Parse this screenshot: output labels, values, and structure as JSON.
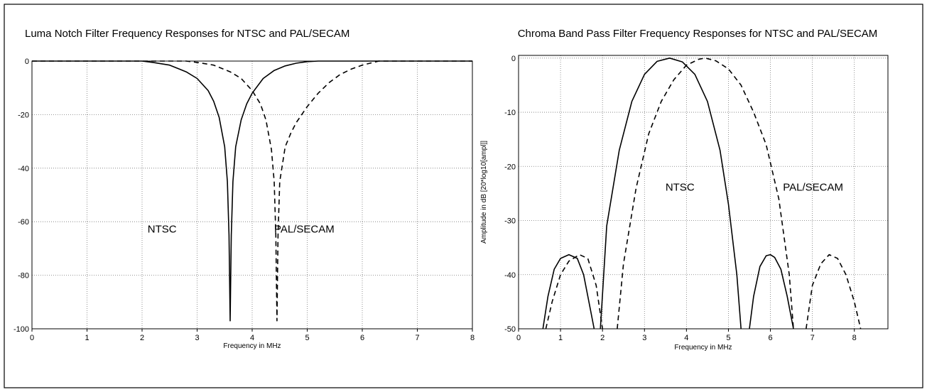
{
  "chart_data": [
    {
      "type": "line",
      "title": "Luma Notch Filter Frequency Responses for NTSC and PAL/SECAM",
      "xlabel": "Frequency in MHz",
      "ylabel": "",
      "xlim": [
        0,
        8
      ],
      "ylim": [
        -100,
        0
      ],
      "x_ticks": [
        "0",
        "1",
        "2",
        "3",
        "4",
        "5",
        "6",
        "7",
        "8"
      ],
      "y_ticks": [
        "0",
        "-20",
        "-40",
        "-60",
        "-80",
        "-100"
      ],
      "grid": true,
      "series": [
        {
          "name": "NTSC",
          "style": "solid",
          "color": "#000000",
          "x": [
            0,
            2.0,
            2.2,
            2.5,
            2.8,
            3.0,
            3.2,
            3.3,
            3.4,
            3.5,
            3.55,
            3.58,
            3.6,
            3.62,
            3.65,
            3.7,
            3.8,
            3.9,
            4.0,
            4.2,
            4.4,
            4.6,
            4.8,
            5.0,
            5.2,
            8.0
          ],
          "y": [
            0,
            0,
            -0.5,
            -1.5,
            -4,
            -6.5,
            -11,
            -15,
            -21,
            -32,
            -45,
            -65,
            -97,
            -65,
            -45,
            -32,
            -22,
            -16,
            -12,
            -6.5,
            -3.5,
            -1.8,
            -0.8,
            -0.2,
            0,
            0
          ]
        },
        {
          "name": "PAL/SECAM",
          "style": "dashed",
          "color": "#000000",
          "x": [
            0,
            2.8,
            3.0,
            3.3,
            3.6,
            3.8,
            4.0,
            4.15,
            4.25,
            4.35,
            4.4,
            4.43,
            4.45,
            4.47,
            4.5,
            4.6,
            4.7,
            4.8,
            5.0,
            5.2,
            5.4,
            5.6,
            5.8,
            6.0,
            6.3,
            8.0
          ],
          "y": [
            0,
            0,
            -0.5,
            -1.5,
            -4,
            -6.5,
            -11,
            -16,
            -22,
            -33,
            -45,
            -65,
            -97,
            -65,
            -45,
            -32,
            -27,
            -23,
            -17,
            -12,
            -8,
            -5,
            -3,
            -1.5,
            0,
            0
          ]
        }
      ],
      "annotations": [
        {
          "text": "NTSC",
          "x": 2.1,
          "y": -64
        },
        {
          "text": "PAL/SECAM",
          "x": 4.4,
          "y": -64
        }
      ]
    },
    {
      "type": "line",
      "title": "Chroma Band Pass Filter Frequency Responses for NTSC and PAL/SECAM",
      "xlabel": "Frequency in MHz",
      "ylabel": "Amplitude in dB [20*log10[ampl]]",
      "xlim": [
        0,
        8.8
      ],
      "ylim": [
        -50,
        0.5
      ],
      "x_ticks": [
        "0",
        "1",
        "2",
        "3",
        "4",
        "5",
        "6",
        "7",
        "8"
      ],
      "y_ticks": [
        "0",
        "-10",
        "-20",
        "-30",
        "-40",
        "-50"
      ],
      "grid": true,
      "series": [
        {
          "name": "NTSC",
          "style": "solid",
          "color": "#000000",
          "segments": [
            {
              "x": [
                0.58,
                0.7,
                0.85,
                1.0,
                1.2,
                1.4,
                1.55,
                1.7,
                1.8
              ],
              "y": [
                -50,
                -44,
                -39,
                -37,
                -36.3,
                -37,
                -40,
                -46,
                -50
              ]
            },
            {
              "x": [
                1.95,
                2.1,
                2.4,
                2.7,
                3.0,
                3.3,
                3.6,
                3.9,
                4.2,
                4.5,
                4.8,
                5.0,
                5.2,
                5.3
              ],
              "y": [
                -50,
                -31,
                -17,
                -8,
                -3,
                -0.6,
                0,
                -0.7,
                -3,
                -8,
                -17,
                -27,
                -40,
                -50
              ]
            },
            {
              "x": [
                5.5,
                5.6,
                5.75,
                5.9,
                6.0,
                6.1,
                6.25,
                6.4,
                6.55
              ],
              "y": [
                -50,
                -44,
                -38.5,
                -36.5,
                -36.3,
                -36.8,
                -39,
                -44,
                -50
              ]
            }
          ]
        },
        {
          "name": "PAL/SECAM",
          "style": "dashed",
          "color": "#000000",
          "segments": [
            {
              "x": [
                0.65,
                0.8,
                1.0,
                1.2,
                1.45,
                1.65,
                1.85,
                2.0
              ],
              "y": [
                -50,
                -45,
                -40,
                -37.5,
                -36.3,
                -37,
                -42,
                -50
              ]
            },
            {
              "x": [
                2.35,
                2.5,
                2.8,
                3.1,
                3.4,
                3.7,
                4.0,
                4.3,
                4.45,
                4.7,
                5.0,
                5.3,
                5.6,
                5.9,
                6.2,
                6.45,
                6.55
              ],
              "y": [
                -50,
                -38,
                -24,
                -14,
                -8,
                -4,
                -1.3,
                -0.2,
                0,
                -0.5,
                -2,
                -5,
                -10,
                -16,
                -26,
                -40,
                -50
              ]
            },
            {
              "x": [
                6.85,
                7.0,
                7.2,
                7.4,
                7.6,
                7.8,
                8.0,
                8.15
              ],
              "y": [
                -50,
                -42,
                -38,
                -36.3,
                -37,
                -40,
                -45,
                -50
              ]
            }
          ]
        }
      ],
      "annotations": [
        {
          "text": "NTSC",
          "x": 3.5,
          "y": -24.5
        },
        {
          "text": "PAL/SECAM",
          "x": 6.3,
          "y": -24.5
        }
      ]
    }
  ]
}
